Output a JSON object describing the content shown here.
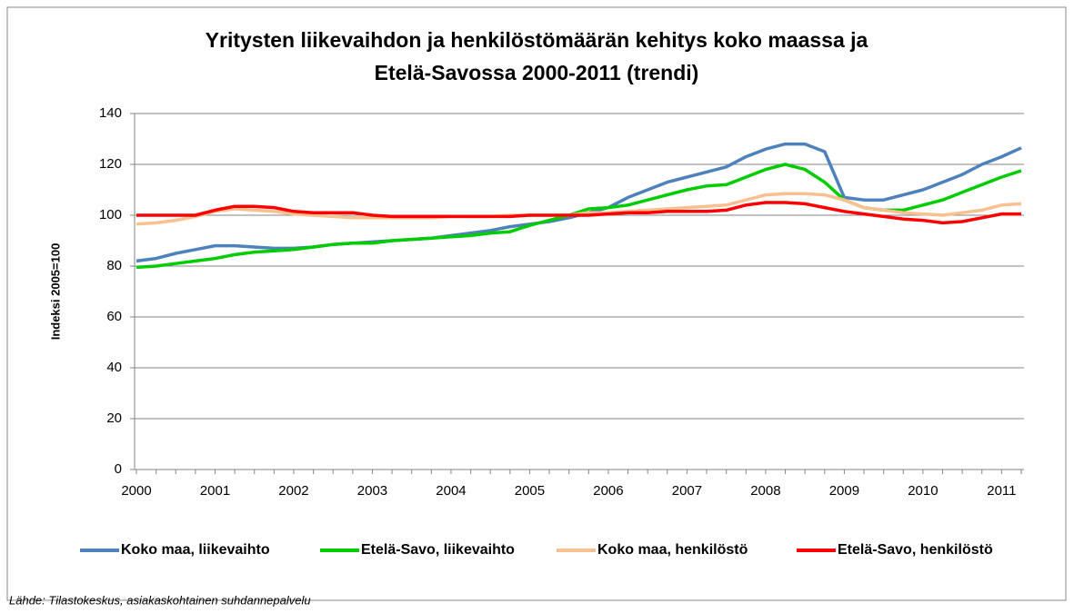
{
  "chart_data": {
    "type": "line",
    "title": [
      "Yritysten liikevaihdon ja henkilöstömäärän kehitys koko maassa ja",
      "Etelä-Savossa 2000-2011 (trendi)"
    ],
    "y_label": "Indeksi 2005=100",
    "source": "Lähde: Tilastokeskus, asiakaskohtainen suhdannepalvelu",
    "categories": [
      "2000",
      null,
      null,
      null,
      "2001",
      null,
      null,
      null,
      "2002",
      null,
      null,
      null,
      "2003",
      null,
      null,
      null,
      "2004",
      null,
      null,
      null,
      "2005",
      null,
      null,
      null,
      "2006",
      null,
      null,
      null,
      "2007",
      null,
      null,
      null,
      "2008",
      null,
      null,
      null,
      "2009",
      null,
      null,
      null,
      "2010",
      null,
      null,
      null,
      "2011",
      null
    ],
    "ylim": [
      0,
      140
    ],
    "yticks": [
      0,
      20,
      40,
      60,
      80,
      100,
      120,
      140
    ],
    "grid": true,
    "legend": "bottom",
    "series": [
      {
        "name": "Koko maa, liikevaihto",
        "color": "#4f81bd",
        "values": [
          82,
          83,
          85,
          86.5,
          88,
          88,
          87.5,
          87,
          87,
          87.5,
          88.5,
          89,
          89.5,
          90,
          90.5,
          91,
          92,
          93,
          94,
          95.5,
          96.5,
          97.5,
          99,
          101,
          103,
          107,
          110,
          113,
          115,
          117,
          119,
          123,
          126,
          128,
          128,
          125,
          107,
          106,
          106,
          108,
          110,
          113,
          116,
          120,
          123,
          126.5
        ]
      },
      {
        "name": "Etelä-Savo, liikevaihto",
        "color": "#00cc00",
        "values": [
          79.5,
          80,
          81,
          82,
          83,
          84.5,
          85.5,
          86,
          86.5,
          87.5,
          88.5,
          89,
          89,
          90,
          90.5,
          91,
          91.5,
          92,
          93,
          93.5,
          96,
          98,
          100,
          102.5,
          103,
          104,
          106,
          108,
          110,
          111.5,
          112,
          115,
          118,
          120,
          118,
          113,
          106,
          103,
          102,
          102,
          104,
          106,
          109,
          112,
          115,
          117.5
        ]
      },
      {
        "name": "Koko maa, henkilöstö",
        "color": "#fac090",
        "values": [
          96.5,
          97,
          98,
          99.5,
          101.5,
          102.5,
          102,
          101.5,
          100.5,
          100,
          99.5,
          99,
          99,
          99,
          99,
          99,
          99.5,
          99.5,
          99.5,
          100,
          100,
          100,
          100,
          101,
          101,
          101.5,
          102,
          102.5,
          103,
          103.5,
          104,
          106,
          108,
          108.5,
          108.5,
          108,
          106,
          103,
          102,
          101,
          100.5,
          100,
          101,
          102,
          104,
          104.5
        ]
      },
      {
        "name": "Etelä-Savo, henkilöstö",
        "color": "#ff0000",
        "values": [
          100,
          100,
          100,
          100,
          102,
          103.5,
          103.5,
          103,
          101.5,
          101,
          101,
          101,
          100,
          99.5,
          99.5,
          99.5,
          99.5,
          99.5,
          99.5,
          99.5,
          100,
          100,
          100,
          100,
          100.5,
          101,
          101,
          101.5,
          101.5,
          101.5,
          102,
          104,
          105,
          105,
          104.5,
          103,
          101.5,
          100.5,
          99.5,
          98.5,
          98,
          97,
          97.5,
          99,
          100.5,
          100.5
        ]
      }
    ]
  }
}
